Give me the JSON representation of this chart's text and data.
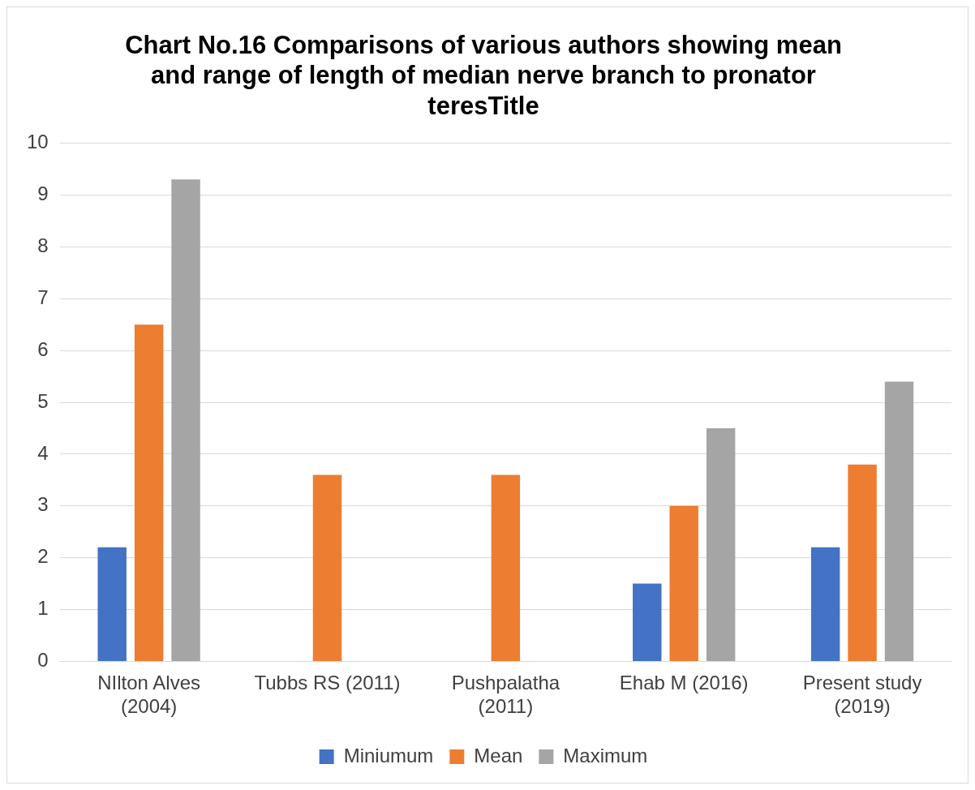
{
  "chart_data": {
    "type": "bar",
    "title": "Chart No.16 Comparisons of various authors showing mean and range of length of median nerve branch to pronator teresTitle",
    "categories": [
      "NIlton Alves (2004)",
      "Tubbs RS (2011)",
      "Pushpalatha (2011)",
      "Ehab M (2016)",
      "Present study (2019)"
    ],
    "series": [
      {
        "name": "Miniumum",
        "color": "#4472c4",
        "values": [
          2.2,
          null,
          null,
          1.5,
          2.2
        ]
      },
      {
        "name": "Mean",
        "color": "#ed7d31",
        "values": [
          6.5,
          3.6,
          3.6,
          3.0,
          3.8
        ]
      },
      {
        "name": "Maximum",
        "color": "#a5a5a5",
        "values": [
          9.3,
          null,
          null,
          4.5,
          5.4
        ]
      }
    ],
    "ylim": [
      0,
      10
    ],
    "yticks": [
      0,
      1,
      2,
      3,
      4,
      5,
      6,
      7,
      8,
      9,
      10
    ],
    "grid": "y",
    "legend": "bottom"
  }
}
